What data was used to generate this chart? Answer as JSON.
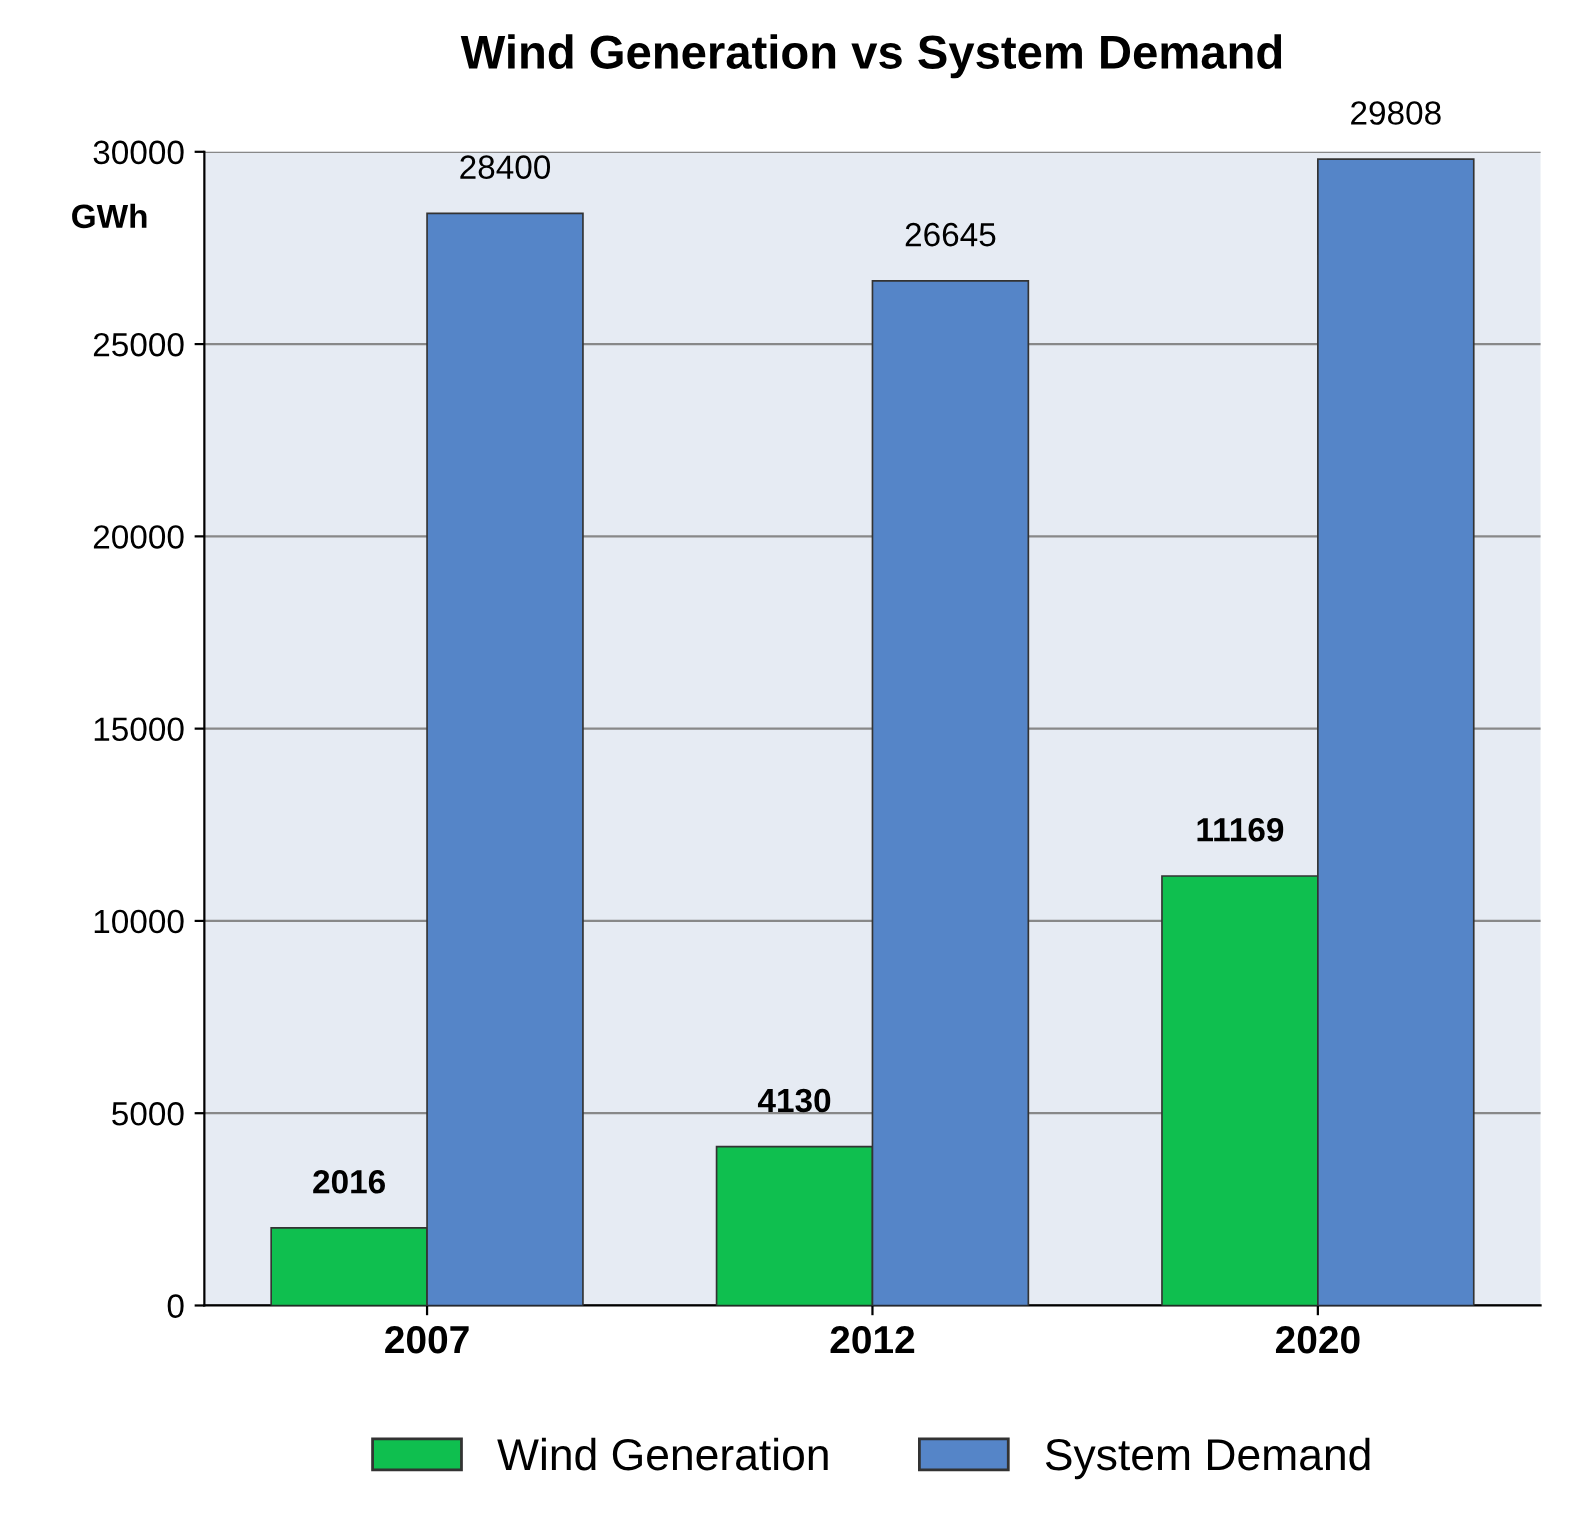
{
  "chart_data": {
    "type": "bar",
    "title": "Wind Generation vs System Demand",
    "ylabel": "GWh",
    "categories": [
      "2007",
      "2012",
      "2020"
    ],
    "series": [
      {
        "name": "Wind Generation",
        "color": "#0fbf4f",
        "values": [
          2016,
          4130,
          11169
        ]
      },
      {
        "name": "System Demand",
        "color": "#5585c8",
        "values": [
          28400,
          26645,
          29808
        ]
      }
    ],
    "ylim": [
      0,
      30000
    ],
    "yticks": [
      0,
      5000,
      10000,
      15000,
      20000,
      25000,
      30000
    ],
    "grid": "y",
    "legend": "bottom",
    "data_labels": true
  }
}
